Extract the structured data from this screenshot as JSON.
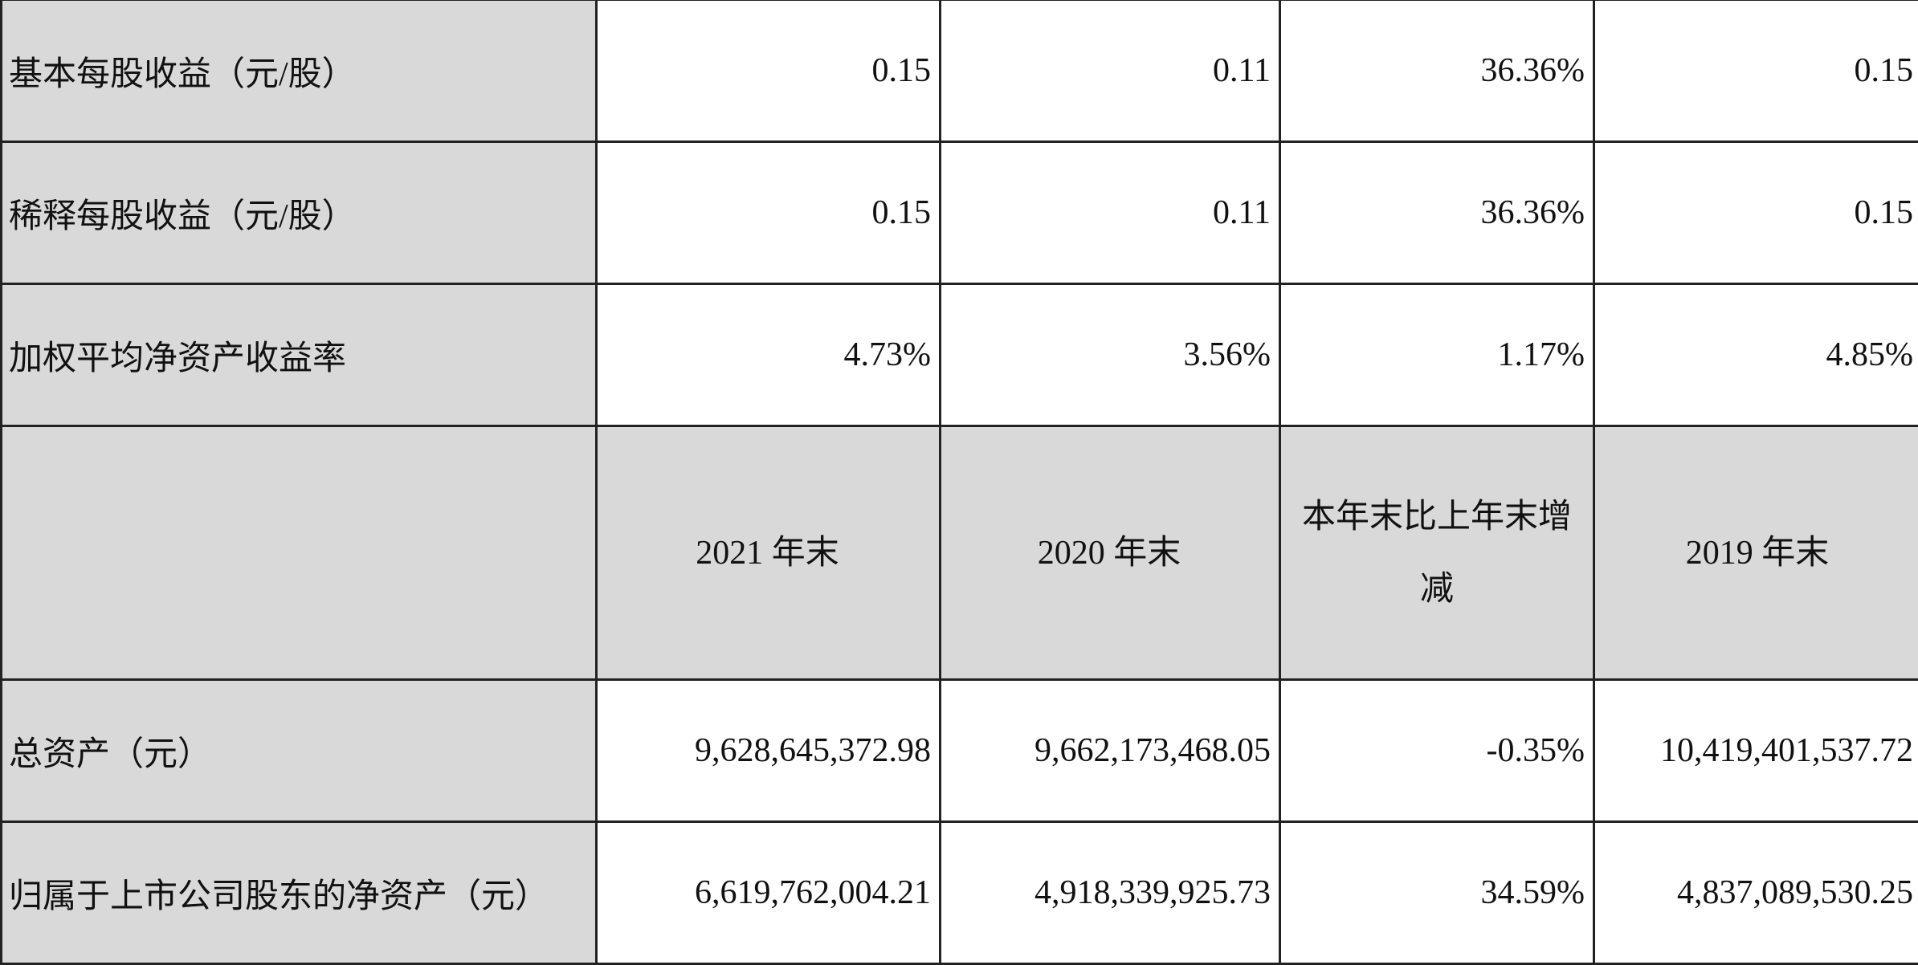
{
  "rows_top": [
    {
      "label": "基本每股收益（元/股）",
      "values": [
        "0.15",
        "0.11",
        "36.36%",
        "0.15"
      ]
    },
    {
      "label": "稀释每股收益（元/股）",
      "values": [
        "0.15",
        "0.11",
        "36.36%",
        "0.15"
      ]
    },
    {
      "label": "加权平均净资产收益率",
      "values": [
        "4.73%",
        "3.56%",
        "1.17%",
        "4.85%"
      ]
    }
  ],
  "header": {
    "label": "",
    "columns": [
      "2021 年末",
      "2020 年末",
      "本年末比上年末增减",
      "2019 年末"
    ]
  },
  "rows_bottom": [
    {
      "label": "总资产（元）",
      "values": [
        "9,628,645,372.98",
        "9,662,173,468.05",
        "-0.35%",
        "10,419,401,537.72"
      ]
    },
    {
      "label": "归属于上市公司股东的净资产（元）",
      "values": [
        "6,619,762,004.21",
        "4,918,339,925.73",
        "34.59%",
        "4,837,089,530.25"
      ]
    }
  ],
  "colors": {
    "label_bg": "#d9d9d9",
    "border": "#222222"
  }
}
